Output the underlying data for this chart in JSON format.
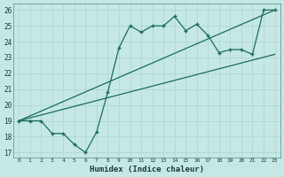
{
  "xlabel": "Humidex (Indice chaleur)",
  "bg_color": "#c5e8e5",
  "grid_color": "#b0d8d4",
  "line_color": "#1a6b60",
  "xlim": [
    -0.5,
    23.5
  ],
  "ylim": [
    16.7,
    26.4
  ],
  "yticks": [
    17,
    18,
    19,
    20,
    21,
    22,
    23,
    24,
    25,
    26
  ],
  "xticks": [
    0,
    1,
    2,
    3,
    4,
    5,
    6,
    7,
    8,
    9,
    10,
    11,
    12,
    13,
    14,
    15,
    16,
    17,
    18,
    19,
    20,
    21,
    22,
    23
  ],
  "curve1_x": [
    0,
    1,
    2,
    3,
    4,
    5,
    6,
    7,
    8,
    9,
    10,
    11,
    12,
    13,
    14,
    15,
    16,
    17,
    18,
    19,
    20,
    21,
    22,
    23
  ],
  "curve1_y": [
    19.0,
    19.0,
    19.0,
    18.2,
    18.2,
    17.5,
    17.0,
    18.3,
    20.8,
    23.6,
    25.0,
    24.6,
    25.0,
    25.0,
    25.6,
    24.7,
    25.1,
    24.4,
    23.3,
    23.5,
    23.5,
    23.2,
    26.0,
    26.0
  ],
  "line1_x": [
    0,
    23
  ],
  "line1_y": [
    19.0,
    26.0
  ],
  "line2_x": [
    0,
    23
  ],
  "line2_y": [
    19.0,
    23.2
  ]
}
